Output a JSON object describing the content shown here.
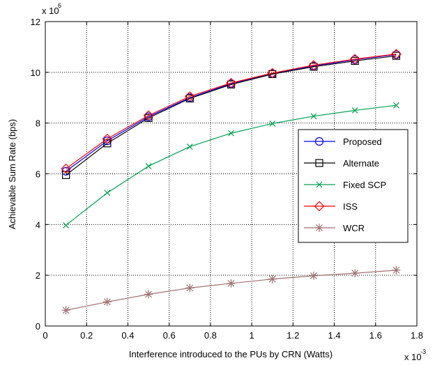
{
  "chart_data": {
    "type": "line",
    "xlabel": "Interference introduced to the PUs by CRN (Watts)",
    "ylabel": "Achievable Sum Rate (bps)",
    "x_multiplier_base": "x 10",
    "x_multiplier_exp": "-3",
    "y_multiplier_base": "x 10",
    "y_multiplier_exp": "6",
    "xlim": [
      0,
      1.8
    ],
    "ylim": [
      0,
      12
    ],
    "xticks": [
      "0",
      "0.2",
      "0.4",
      "0.6",
      "0.8",
      "1",
      "1.2",
      "1.4",
      "1.6",
      "1.8"
    ],
    "yticks": [
      "0",
      "2",
      "4",
      "6",
      "8",
      "10",
      "12"
    ],
    "grid": true,
    "legend_position": "right",
    "x": [
      0.1,
      0.3,
      0.5,
      0.7,
      0.9,
      1.1,
      1.3,
      1.5,
      1.7
    ],
    "series": [
      {
        "name": "Proposed",
        "color": "#0000ff",
        "marker": "circle",
        "values": [
          6.1,
          7.3,
          8.25,
          9.0,
          9.55,
          9.95,
          10.25,
          10.5,
          10.7
        ]
      },
      {
        "name": "Alternate",
        "color": "#000000",
        "marker": "square",
        "values": [
          5.95,
          7.2,
          8.2,
          8.97,
          9.52,
          9.93,
          10.22,
          10.45,
          10.65
        ]
      },
      {
        "name": "Fixed SCP",
        "color": "#00a050",
        "marker": "x",
        "values": [
          3.97,
          5.25,
          6.3,
          7.07,
          7.6,
          7.98,
          8.27,
          8.5,
          8.7
        ]
      },
      {
        "name": "ISS",
        "color": "#ff0000",
        "marker": "diamond",
        "values": [
          6.2,
          7.38,
          8.3,
          9.05,
          9.58,
          9.97,
          10.28,
          10.52,
          10.72
        ]
      },
      {
        "name": "WCR",
        "color": "#a07070",
        "marker": "star",
        "values": [
          0.62,
          0.95,
          1.25,
          1.5,
          1.68,
          1.85,
          1.98,
          2.08,
          2.2
        ]
      }
    ]
  }
}
